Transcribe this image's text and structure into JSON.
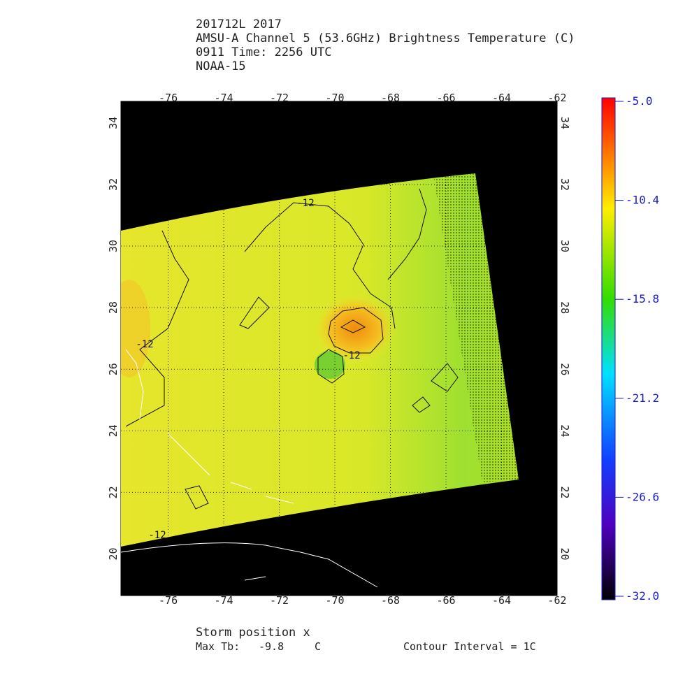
{
  "header": {
    "lines": [
      "201712L 2017",
      "AMSU-A Channel 5 (53.6GHz) Brightness Temperature (C)",
      "0911 Time: 2256 UTC",
      "NOAA-15"
    ]
  },
  "map": {
    "lon_range": [
      -77.7,
      -62
    ],
    "lat_range": [
      18.65,
      34.7
    ],
    "lon_ticks": [
      -76,
      -74,
      -72,
      -70,
      -68,
      -66,
      -64,
      -62
    ],
    "lat_ticks": [
      20,
      22,
      24,
      26,
      28,
      30,
      32,
      34
    ],
    "contour_labels": [
      "-12",
      "-12",
      "-12",
      "-12"
    ]
  },
  "colorbar": {
    "range": [
      -32,
      -5
    ],
    "ticks": [
      {
        "value": -5.0,
        "label": "-5.0"
      },
      {
        "value": -10.4,
        "label": "-10.4"
      },
      {
        "value": -15.8,
        "label": "-15.8"
      },
      {
        "value": -21.2,
        "label": "-21.2"
      },
      {
        "value": -26.6,
        "label": "-26.6"
      },
      {
        "value": -32.0,
        "label": "-32.0"
      }
    ]
  },
  "footer": {
    "storm": "Storm position x",
    "max_tb_label": "Max Tb:",
    "max_tb": {
      "value": -9.8,
      "label": "-9.8"
    },
    "unit": "C",
    "contour_interval": "Contour Interval = 1C"
  }
}
